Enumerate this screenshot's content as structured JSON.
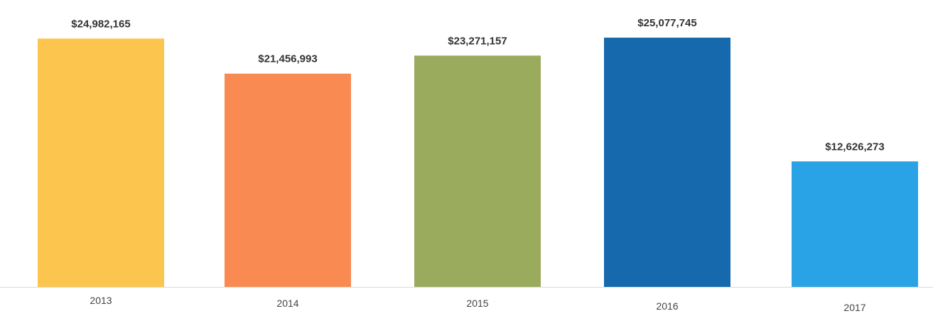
{
  "chart_data": {
    "type": "bar",
    "categories": [
      "2013",
      "2014",
      "2015",
      "2016",
      "2017"
    ],
    "values": [
      24982165,
      21456993,
      23271157,
      25077745,
      12626273
    ],
    "value_labels": [
      "$24,982,165",
      "$21,456,993",
      "$23,271,157",
      "$25,077,745",
      "$12,626,273"
    ],
    "colors": [
      "#FCC64E",
      "#F98B52",
      "#9BAB5E",
      "#1769AD",
      "#2AA3E6"
    ],
    "axis_line_color": "#D9D9D9",
    "ylim": [
      0,
      25077745
    ],
    "grid": false,
    "legend": "none",
    "title": "",
    "xlabel": "",
    "ylabel": ""
  }
}
